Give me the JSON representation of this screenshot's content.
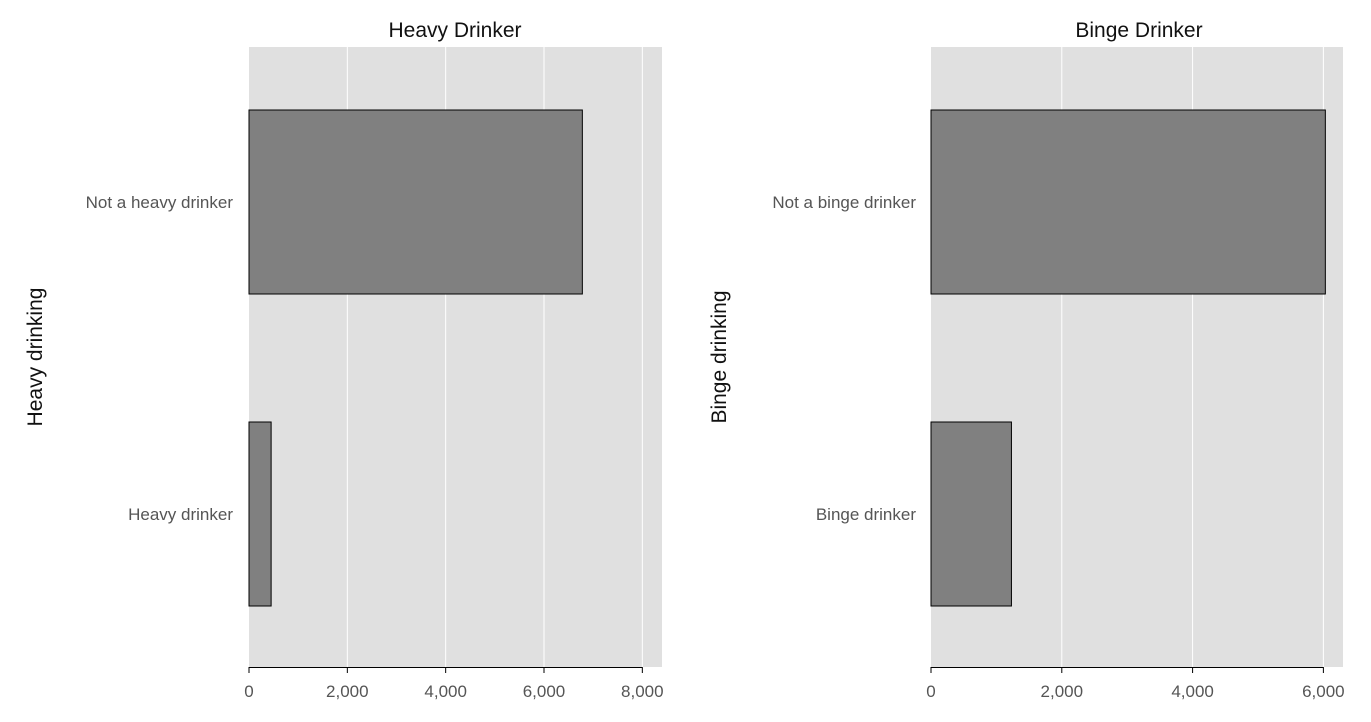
{
  "chart_data": [
    {
      "type": "bar",
      "orientation": "horizontal",
      "title": "Heavy Drinker",
      "ylabel": "Heavy drinking",
      "xlabel": "",
      "categories": [
        "Not a heavy drinker",
        "Heavy drinker"
      ],
      "values": [
        6780,
        450
      ],
      "xlim": [
        0,
        8400
      ],
      "xticks": [
        0,
        2000,
        4000,
        6000,
        8000
      ],
      "xtick_labels": [
        "0",
        "2,000",
        "4,000",
        "6,000",
        "8,000"
      ],
      "grid": true,
      "colors": {
        "panel": "#e0e0e0",
        "bar": "#808080",
        "bar_edge": "#000000",
        "grid": "#ffffff"
      }
    },
    {
      "type": "bar",
      "orientation": "horizontal",
      "title": "Binge Drinker",
      "ylabel": "Binge drinking",
      "xlabel": "",
      "categories": [
        "Not a binge drinker",
        "Binge drinker"
      ],
      "values": [
        6030,
        1230
      ],
      "xlim": [
        0,
        6300
      ],
      "xticks": [
        0,
        2000,
        4000,
        6000
      ],
      "xtick_labels": [
        "0",
        "2,000",
        "4,000",
        "6,000"
      ],
      "grid": true,
      "colors": {
        "panel": "#e0e0e0",
        "bar": "#808080",
        "bar_edge": "#000000",
        "grid": "#ffffff"
      }
    }
  ]
}
